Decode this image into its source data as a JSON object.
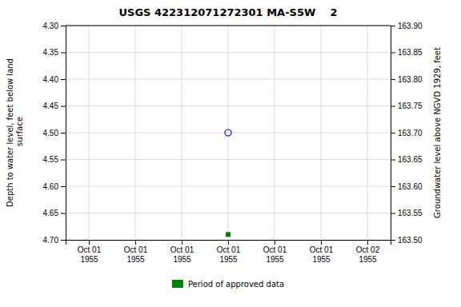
{
  "chart_data": {
    "type": "scatter",
    "title": "USGS 422312071272301 MA-S5W    2",
    "ylabel": "Depth to water level, feet below land\n surface",
    "y2label": "Groundwater level above NGVD 1929, feet",
    "categories": [
      "Oct 01\n1955",
      "Oct 01\n1955",
      "Oct 01\n1955",
      "Oct 01\n1955",
      "Oct 01\n1955",
      "Oct 01\n1955",
      "Oct 02\n1955"
    ],
    "series": [
      {
        "color": "#0000ff",
        "marker": "open_circle",
        "values": [
          null,
          null,
          null,
          4.5,
          null,
          null,
          null
        ]
      },
      {
        "name": "Period of approved data",
        "color": "#008000",
        "marker": "square",
        "values": [
          null,
          null,
          null,
          4.69,
          null,
          null,
          null
        ]
      }
    ],
    "ylim": [
      4.7,
      4.3
    ],
    "yticks": [
      {
        "value": 4.3,
        "label": "4.30"
      },
      4.35,
      {
        "value": 4.4,
        "label": "4.40"
      },
      4.45,
      {
        "value": 4.5,
        "label": "4.50"
      },
      4.55,
      {
        "value": 4.6,
        "label": "4.60"
      },
      4.65,
      {
        "value": 4.7,
        "label": "4.70"
      }
    ],
    "y2lim": [
      163.5,
      163.9
    ],
    "y2ticks": [
      {
        "value": 163.9,
        "label": "163.90"
      },
      163.85,
      {
        "value": 163.8,
        "label": "163.80"
      },
      163.75,
      {
        "value": 163.7,
        "label": "163.70"
      },
      163.65,
      {
        "value": 163.6,
        "label": "163.60"
      },
      163.55,
      {
        "value": 163.5,
        "label": "163.50"
      }
    ],
    "grid": true,
    "legend": "bottom"
  }
}
